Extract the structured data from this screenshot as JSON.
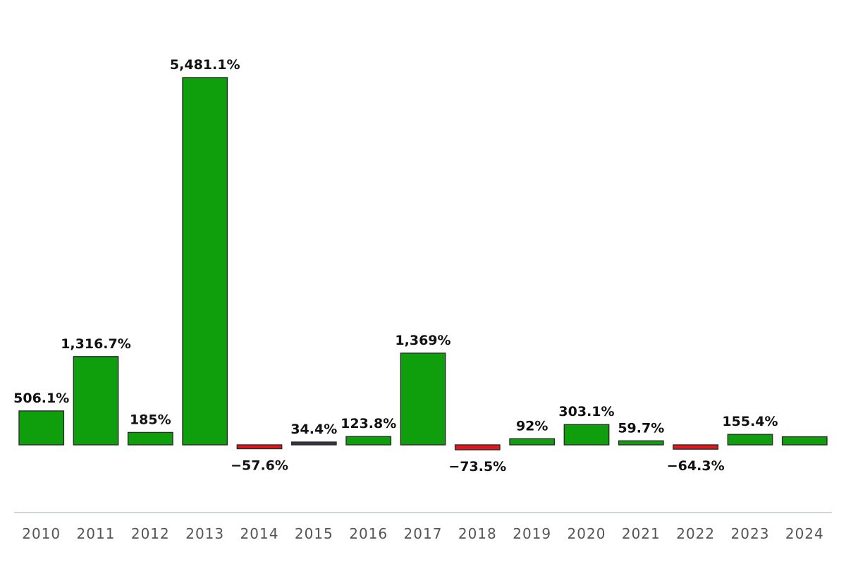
{
  "chart_data": {
    "type": "bar",
    "title": "",
    "xlabel": "",
    "ylabel": "",
    "categories": [
      "2010",
      "2011",
      "2012",
      "2013",
      "2014",
      "2015",
      "2016",
      "2017",
      "2018",
      "2019",
      "2020",
      "2021",
      "2022",
      "2023",
      "2024"
    ],
    "values": [
      506.1,
      1316.7,
      185,
      5481.1,
      -57.6,
      34.4,
      123.8,
      1369,
      -73.5,
      92,
      303.1,
      59.7,
      -64.3,
      155.4,
      121
    ],
    "data_labels": [
      "506.1%",
      "1,316.7%",
      "185%",
      "5,481.1%",
      "-57.6%",
      "34.4%",
      "123.8%",
      "1,369%",
      "-73.5%",
      "92%",
      "303.1%",
      "59.7%",
      "-64.3%",
      "155.4%",
      ""
    ],
    "ylim": [
      -100,
      5481.1
    ],
    "grid": false,
    "legend": "none",
    "colors": {
      "positive": "#0f9e0c",
      "negative": "#e0171d",
      "neutral": "#3a3142",
      "bar_outline": "#2b2b2b",
      "axis_line": "#cfd6d8",
      "tick_text": "#555555",
      "label_text": "#111111"
    }
  }
}
